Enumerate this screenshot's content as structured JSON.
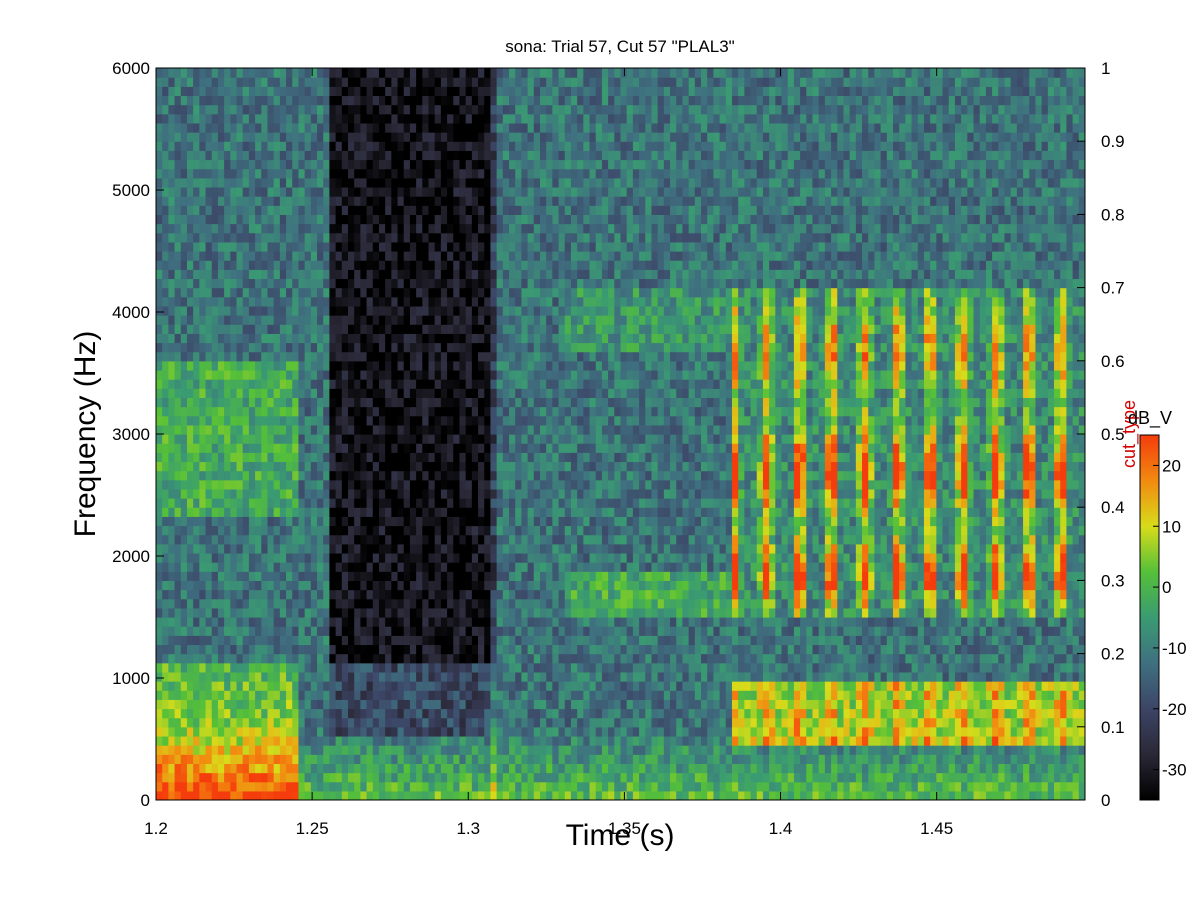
{
  "chart_data": {
    "type": "heatmap",
    "title": "sona: Trial 57, Cut 57 \"PLAL3\"",
    "xlabel": "Time (s)",
    "ylabel": "Frequency (Hz)",
    "xlim": [
      1.2,
      1.4975
    ],
    "ylim": [
      0,
      6000
    ],
    "x_ticks": [
      1.2,
      1.25,
      1.3,
      1.35,
      1.4,
      1.45
    ],
    "x_tick_labels": [
      "1.2",
      "1.25",
      "1.3",
      "1.35",
      "1.4",
      "1.45"
    ],
    "y_ticks": [
      0,
      1000,
      2000,
      3000,
      4000,
      5000,
      6000
    ],
    "y_tick_labels": [
      "0",
      "1000",
      "2000",
      "3000",
      "4000",
      "5000",
      "6000"
    ],
    "right_axis": {
      "label": "cut_type",
      "ylim": [
        0,
        1
      ],
      "ticks": [
        0,
        0.1,
        0.2,
        0.3,
        0.4,
        0.5,
        0.6,
        0.7,
        0.8,
        0.9,
        1
      ],
      "tick_labels": [
        "0",
        "0.1",
        "0.2",
        "0.3",
        "0.4",
        "0.5",
        "0.6",
        "0.7",
        "0.8",
        "0.9",
        "1"
      ]
    },
    "colorbar": {
      "title": "dB_V",
      "clim": [
        -35,
        25
      ],
      "ticks": [
        -30,
        -20,
        -10,
        0,
        10,
        20
      ],
      "tick_labels": [
        "-30",
        "-20",
        "-10",
        "0",
        "10",
        "20"
      ],
      "colormap": [
        "#000000",
        "#2a2836",
        "#3c4566",
        "#3f7080",
        "#3a9b72",
        "#55c038",
        "#d8dc1a",
        "#f28a10",
        "#f53c0c"
      ]
    },
    "grid": false,
    "description_regions": [
      {
        "t": [
          1.2,
          1.245
        ],
        "f": [
          0,
          1000
        ],
        "level_db": 22
      },
      {
        "t": [
          1.26,
          1.31
        ],
        "f": [
          1200,
          6000
        ],
        "level_db": -32
      },
      {
        "t": [
          1.385,
          1.4975
        ],
        "f": [
          500,
          900
        ],
        "level_db": 22
      },
      {
        "t": [
          1.385,
          1.4975
        ],
        "f": [
          1500,
          4200
        ],
        "level_db": 15
      }
    ],
    "striation_period_s": 0.0105
  }
}
